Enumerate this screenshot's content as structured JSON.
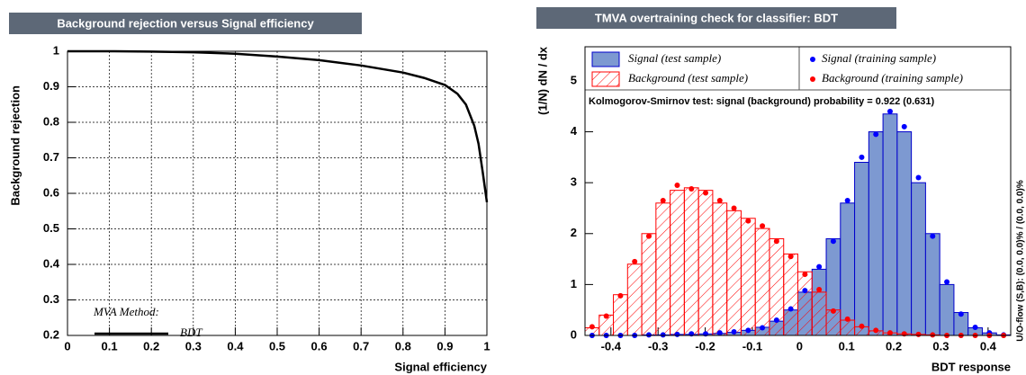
{
  "chart_data": [
    {
      "type": "line",
      "title": "Background rejection versus Signal efficiency",
      "x_label": "Signal efficiency",
      "y_label": "Background rejection",
      "legend_title": "MVA Method:",
      "x": [
        0,
        0.1,
        0.2,
        0.3,
        0.4,
        0.5,
        0.6,
        0.7,
        0.8,
        0.85,
        0.9,
        0.93,
        0.95,
        0.97,
        0.98,
        0.99,
        1
      ],
      "series": [
        {
          "name": "BDT",
          "color": "#000000",
          "values": [
            1,
            1,
            0.999,
            0.997,
            0.993,
            0.985,
            0.975,
            0.96,
            0.94,
            0.925,
            0.905,
            0.88,
            0.85,
            0.79,
            0.74,
            0.66,
            0.575
          ]
        }
      ],
      "xlim": [
        0,
        1
      ],
      "ylim": [
        0.2,
        1
      ],
      "xticks": [
        0,
        0.1,
        0.2,
        0.3,
        0.4,
        0.5,
        0.6,
        0.7,
        0.8,
        0.9,
        1
      ],
      "yticks": [
        0.2,
        0.3,
        0.4,
        0.5,
        0.6,
        0.7,
        0.8,
        0.9,
        1
      ],
      "grid": true
    },
    {
      "type": "histogram",
      "title": "TMVA overtraining check for classifier: BDT",
      "x_label": "BDT response",
      "y_label": "(1/N) dN / dx",
      "annotation": "Kolmogorov-Smirnov test: signal (background) probability = 0.922 (0.631)",
      "side_label": "U/O-flow (S,B): (0.0, 0.0)% / (0.0, 0.0)%",
      "bins": [
        -0.455,
        -0.4249,
        -0.3948,
        -0.3647,
        -0.3346,
        -0.3045,
        -0.2744,
        -0.2443,
        -0.2142,
        -0.1841,
        -0.154,
        -0.1239,
        -0.0938,
        -0.0637,
        -0.0336,
        -0.0035,
        0.0266,
        0.0567,
        0.0868,
        0.1169,
        0.147,
        0.1771,
        0.2072,
        0.2373,
        0.2674,
        0.2975,
        0.3276,
        0.3577,
        0.3878,
        0.4179,
        0.448
      ],
      "series": [
        {
          "name": "Signal (test sample)",
          "style": "filled",
          "color": "#7d99d1",
          "values": [
            0,
            0,
            0,
            0,
            0.01,
            0.01,
            0.02,
            0.02,
            0.03,
            0.04,
            0.06,
            0.1,
            0.16,
            0.28,
            0.5,
            0.85,
            1.3,
            1.9,
            2.6,
            3.4,
            4.0,
            4.35,
            4.0,
            3.0,
            2.0,
            1.0,
            0.45,
            0.15,
            0.05,
            0.01
          ]
        },
        {
          "name": "Background (test sample)",
          "style": "hatched",
          "color": "#ff0000",
          "values": [
            0.15,
            0.4,
            0.8,
            1.4,
            2.0,
            2.6,
            2.85,
            2.9,
            2.85,
            2.6,
            2.45,
            2.3,
            2.1,
            1.9,
            1.6,
            1.25,
            0.85,
            0.5,
            0.3,
            0.17,
            0.09,
            0.05,
            0.03,
            0.02,
            0.01,
            0,
            0,
            0,
            0,
            0
          ]
        },
        {
          "name": "Signal (training sample)",
          "style": "points",
          "color": "#0000ff",
          "values": [
            0,
            0,
            0,
            0,
            0.01,
            0.01,
            0.02,
            0.03,
            0.03,
            0.05,
            0.07,
            0.1,
            0.15,
            0.3,
            0.52,
            0.88,
            1.35,
            1.85,
            2.65,
            3.5,
            3.95,
            4.4,
            4.1,
            3.1,
            1.95,
            1.05,
            0.42,
            0.16,
            0.05,
            0.01
          ]
        },
        {
          "name": "Background (training sample)",
          "style": "points",
          "color": "#ff0000",
          "values": [
            0.17,
            0.38,
            0.78,
            1.45,
            1.95,
            2.65,
            2.95,
            2.88,
            2.8,
            2.65,
            2.5,
            2.25,
            2.15,
            1.85,
            1.55,
            1.2,
            0.9,
            0.48,
            0.32,
            0.18,
            0.1,
            0.05,
            0.03,
            0.02,
            0.01,
            0,
            0,
            0,
            0,
            0
          ]
        }
      ],
      "xlim": [
        -0.455,
        0.448
      ],
      "ylim": [
        0,
        5.67
      ],
      "xticks": [
        -0.4,
        -0.3,
        -0.2,
        -0.1,
        0,
        0.1,
        0.2,
        0.3,
        0.4
      ],
      "yticks": [
        0,
        1,
        2,
        3,
        4,
        5
      ],
      "grid": false
    }
  ]
}
